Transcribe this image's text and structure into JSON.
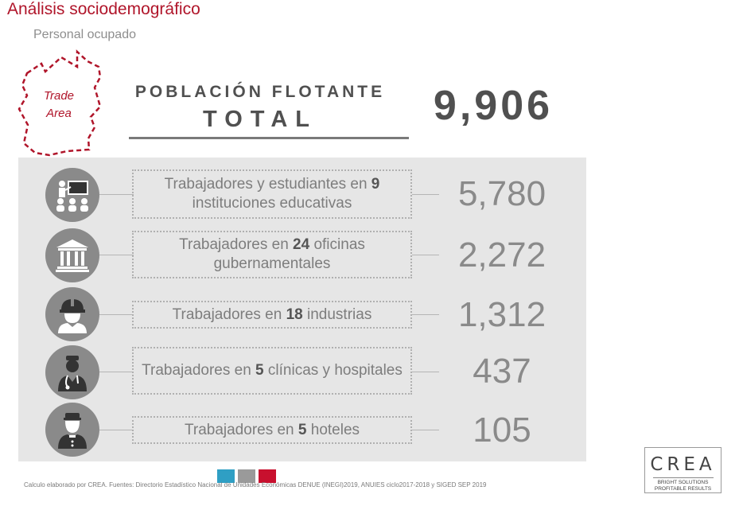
{
  "header": {
    "title": "Análisis sociodemográfico",
    "subtitle": "Personal ocupado"
  },
  "trade_area": {
    "label_line1": "Trade",
    "label_line2": "Area"
  },
  "summary": {
    "heading_line1": "POBLACIÓN FLOTANTE",
    "heading_line2": "TOTAL",
    "total": "9,906"
  },
  "rows": [
    {
      "icon": "teacher-classroom-icon",
      "text_pre": "Trabajadores y estudiantes en ",
      "text_bold": "9",
      "text_post": " instituciones educativas",
      "value": "5,780"
    },
    {
      "icon": "government-building-icon",
      "text_pre": "Trabajadores en ",
      "text_bold": "24",
      "text_post": " oficinas gubernamentales",
      "value": "2,272"
    },
    {
      "icon": "industrial-worker-icon",
      "text_pre": "Trabajadores en ",
      "text_bold": "18",
      "text_post": " industrias",
      "value": "1,312"
    },
    {
      "icon": "doctor-icon",
      "text_pre": "Trabajadores en ",
      "text_bold": "5",
      "text_post": " clínicas y hospitales",
      "value": "437"
    },
    {
      "icon": "hotel-bellhop-icon",
      "text_pre": "Trabajadores en ",
      "text_bold": "5",
      "text_post": " hoteles",
      "value": "105"
    }
  ],
  "footer": {
    "note": "Calculo elaborado por CREA. Fuentes: Directorio Estadístico Nacional de Unidades Económicas DENUE (INEGI)2019, ANUIES ciclo2017-2018 y SIGED SEP 2019",
    "swatch_colors": [
      "#2f9fc4",
      "#9a9a9a",
      "#c8102e"
    ]
  },
  "logo": {
    "name": "CREA",
    "tagline1": "BRIGHT SOLUTIONS",
    "tagline2": "PROFITABLE RESULTS"
  },
  "colors": {
    "accent": "#b0152a",
    "panel": "#e6e6e6",
    "icon_circle": "#8a8a8a"
  }
}
